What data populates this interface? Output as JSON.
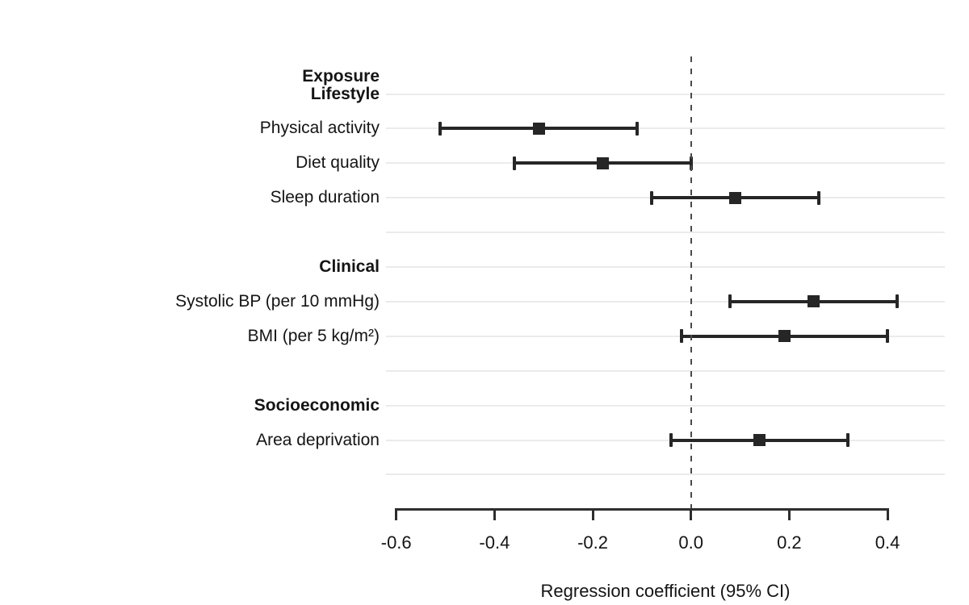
{
  "chart_data": {
    "type": "scatter",
    "variant": "forest-plot",
    "title": "",
    "column_header": "Exposure",
    "xlabel": "Regression coefficient (95% CI)",
    "x_axis": {
      "ticks": [
        -0.6,
        -0.4,
        -0.2,
        0.0,
        0.2,
        0.4
      ],
      "tick_labels": [
        "-0.6",
        "-0.4",
        "-0.2",
        "0.0",
        "0.2",
        "0.4"
      ],
      "axis_range": [
        -0.6,
        0.4
      ]
    },
    "reference_line_x": 0.0,
    "grid": "horizontal rows only",
    "legend": "none",
    "groups": [
      {
        "label": "Lifestyle",
        "rows": [
          {
            "label": "Physical activity",
            "estimate": -0.31,
            "ci_low": -0.51,
            "ci_high": -0.11
          },
          {
            "label": "Diet quality",
            "estimate": -0.18,
            "ci_low": -0.36,
            "ci_high": 0.0
          },
          {
            "label": "Sleep duration",
            "estimate": 0.09,
            "ci_low": -0.08,
            "ci_high": 0.26
          }
        ]
      },
      {
        "label": "Clinical",
        "rows": [
          {
            "label": "Systolic BP (per 10 mmHg)",
            "estimate": 0.25,
            "ci_low": 0.08,
            "ci_high": 0.42
          },
          {
            "label": "BMI (per 5 kg/m²)",
            "estimate": 0.19,
            "ci_low": -0.02,
            "ci_high": 0.4
          }
        ]
      },
      {
        "label": "Socioeconomic",
        "rows": [
          {
            "label": "Area deprivation",
            "estimate": 0.14,
            "ci_low": -0.04,
            "ci_high": 0.32
          }
        ]
      }
    ],
    "colors": {
      "marker": "#262626",
      "ci_line": "#262626",
      "gridline": "#ebebeb",
      "axis": "#2e2e2e",
      "reference_line": "#4a4a4a",
      "text": "#141414"
    }
  }
}
